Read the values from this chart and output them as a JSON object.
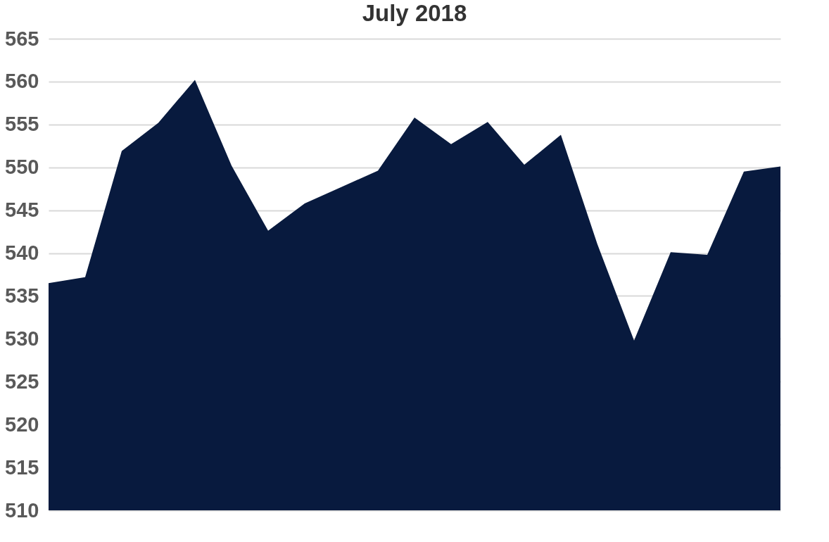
{
  "chart_data": {
    "type": "area",
    "title": "July 2018",
    "categories": [
      null,
      null,
      null,
      null,
      null,
      null,
      null,
      null,
      null,
      null,
      null,
      null,
      null,
      null,
      null,
      null,
      null,
      null,
      null,
      null,
      null
    ],
    "series": [
      {
        "color": "#081a3e",
        "values": [
          536.5,
          537.2,
          551.9,
          555.2,
          560.2,
          550.2,
          542.6,
          545.8,
          547.7,
          549.6,
          555.8,
          552.7,
          555.3,
          550.3,
          553.8,
          541,
          529.8,
          540.1,
          539.8,
          549.5,
          550.1
        ]
      }
    ],
    "ylim": [
      510,
      565
    ],
    "yticks": [
      510,
      515,
      520,
      525,
      530,
      535,
      540,
      545,
      550,
      555,
      560,
      565
    ],
    "grid": "y",
    "legend": false
  }
}
